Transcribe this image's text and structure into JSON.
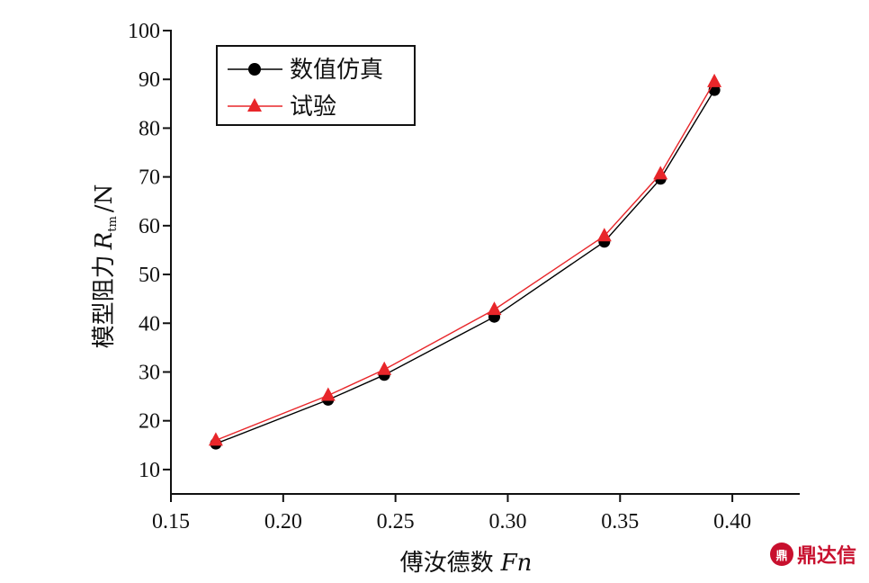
{
  "chart_data": {
    "type": "line",
    "xlabel": "傅汝德数",
    "xlabel_symbol": "Fn",
    "ylabel": "模型阻力",
    "ylabel_symbol": "R",
    "ylabel_subscript": "tm",
    "ylabel_unit": "/N",
    "xlim": [
      0.15,
      0.43
    ],
    "ylim": [
      5,
      100
    ],
    "xticks": [
      0.15,
      0.2,
      0.25,
      0.3,
      0.35,
      0.4
    ],
    "xtick_labels": [
      "0.15",
      "0.20",
      "0.25",
      "0.30",
      "0.35",
      "0.40"
    ],
    "yticks": [
      10,
      20,
      30,
      40,
      50,
      60,
      70,
      80,
      90,
      100
    ],
    "ytick_labels": [
      "10",
      "20",
      "30",
      "40",
      "50",
      "60",
      "70",
      "80",
      "90",
      "100"
    ],
    "legend_position": "top-left",
    "grid": false,
    "series": [
      {
        "name": "数值仿真",
        "color": "#000000",
        "marker": "circle",
        "x": [
          0.17,
          0.22,
          0.245,
          0.294,
          0.343,
          0.368,
          0.392
        ],
        "y": [
          15.3,
          24.3,
          29.4,
          41.3,
          56.7,
          69.6,
          87.8
        ]
      },
      {
        "name": "试验",
        "color": "#e8262a",
        "marker": "triangle",
        "x": [
          0.17,
          0.22,
          0.245,
          0.294,
          0.343,
          0.368,
          0.392
        ],
        "y": [
          16.0,
          25.2,
          30.5,
          42.8,
          57.9,
          70.6,
          89.5
        ]
      }
    ]
  },
  "watermark": {
    "logo_text": "鼎",
    "text": "鼎达信"
  }
}
